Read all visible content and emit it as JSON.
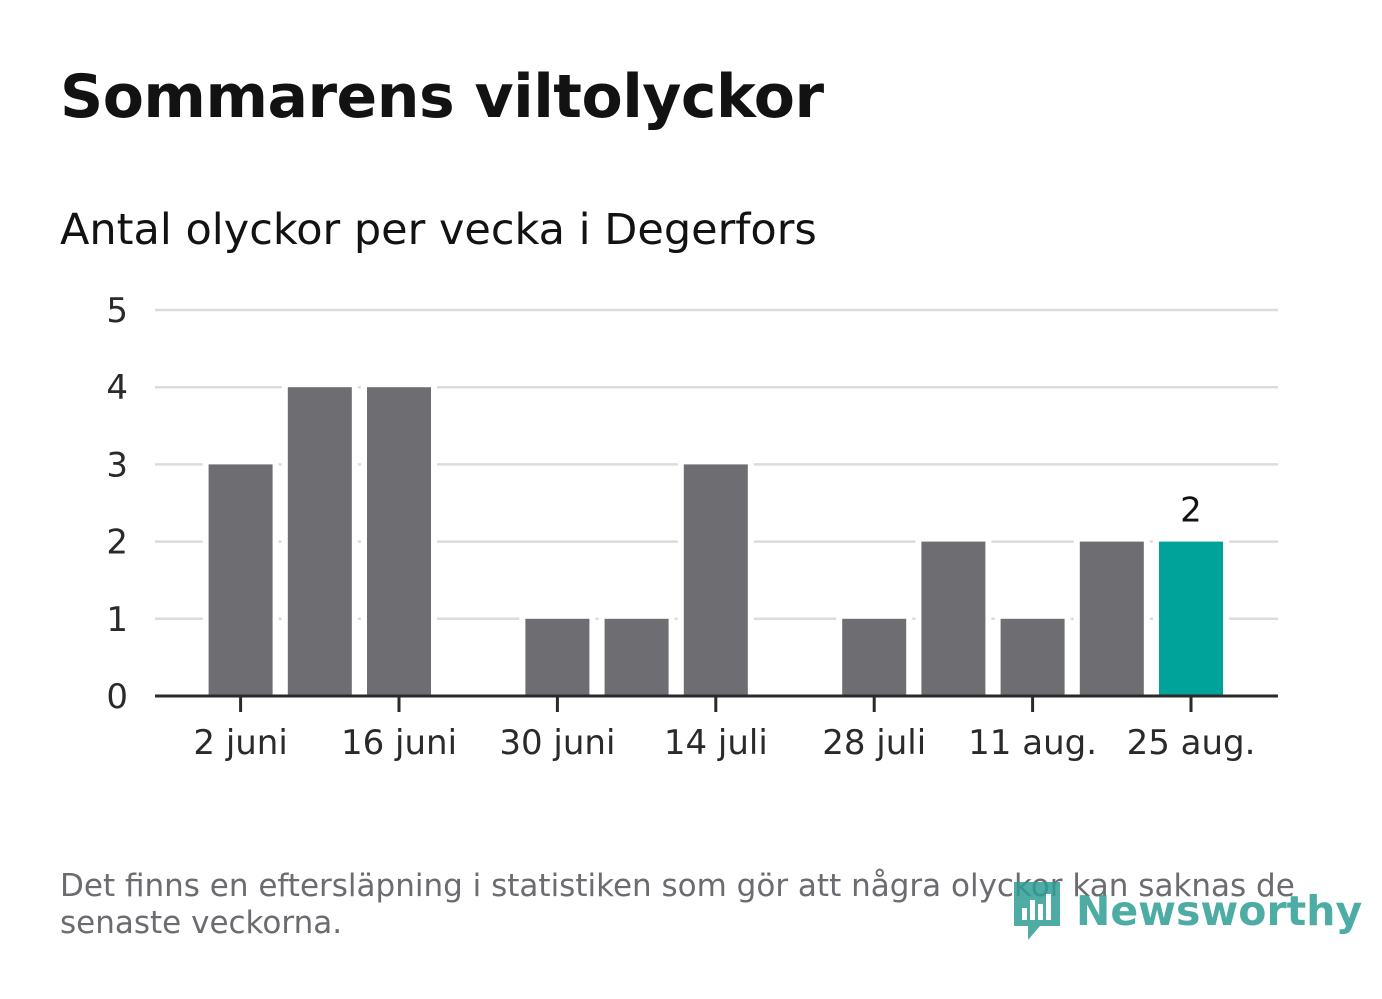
{
  "title": "Sommarens viltolyckor",
  "subtitle": "Antal olyckor per vecka i Degerfors",
  "footnote": "Det finns en eftersläpning i statistiken som gör att några olyckor kan saknas de senaste veckorna.",
  "logo": {
    "text": "Newsworthy",
    "icon": "newsworthy-chart-bubble-icon"
  },
  "colors": {
    "bar": "#6e6d72",
    "highlight": "#00a39a",
    "grid": "#dcdcdc",
    "axis": "#2a2a2a"
  },
  "chart_data": {
    "type": "bar",
    "ylim": [
      0,
      5
    ],
    "yticks": [
      0,
      1,
      2,
      3,
      4,
      5
    ],
    "grid": true,
    "weeks": [
      "2 juni",
      "9 juni",
      "16 juni",
      "23 juni",
      "30 juni",
      "7 juli",
      "14 juli",
      "21 juli",
      "28 juli",
      "4 aug.",
      "11 aug.",
      "18 aug.",
      "25 aug."
    ],
    "values": [
      3,
      4,
      4,
      0,
      1,
      1,
      3,
      0,
      1,
      2,
      1,
      2,
      2
    ],
    "xtick_labels": [
      "2 juni",
      "16 juni",
      "30 juni",
      "14 juli",
      "28 juli",
      "11 aug.",
      "25 aug."
    ],
    "highlight": "25 aug.",
    "data_labels": [
      {
        "x": "25 aug.",
        "text": "2"
      }
    ]
  }
}
